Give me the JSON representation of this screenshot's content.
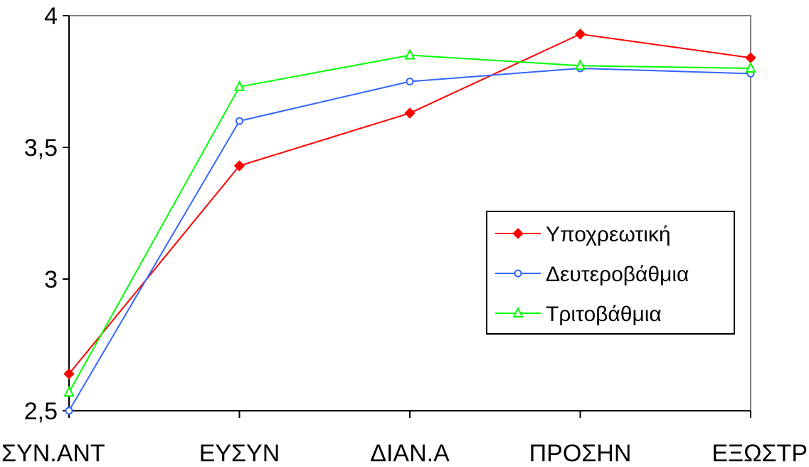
{
  "chart_data": {
    "type": "line",
    "title": "",
    "xlabel": "",
    "ylabel": "",
    "categories": [
      "ΣΥΝ.ΑΝΤ",
      "ΕΥΣΥΝ",
      "ΔΙΑΝ.Α",
      "ΠΡΟΣΗΝ",
      "ΕΞΩΣΤΡ"
    ],
    "ylim": [
      2.5,
      4
    ],
    "yticks": [
      2.5,
      3,
      3.5,
      4
    ],
    "ytick_labels": [
      "2,5",
      "3",
      "3,5",
      "4"
    ],
    "grid": false,
    "legend_position": "right",
    "series": [
      {
        "name": "Υποχρεωτική",
        "color": "#ff0000",
        "marker": "diamond",
        "values": [
          2.64,
          3.43,
          3.63,
          3.93,
          3.84
        ]
      },
      {
        "name": "Δευτεροβάθμια",
        "color": "#3366ff",
        "marker": "circle",
        "values": [
          2.5,
          3.6,
          3.75,
          3.8,
          3.78
        ]
      },
      {
        "name": "Τριτοβάθμια",
        "color": "#00ff00",
        "marker": "triangle",
        "values": [
          2.57,
          3.73,
          3.85,
          3.81,
          3.8
        ]
      }
    ]
  }
}
